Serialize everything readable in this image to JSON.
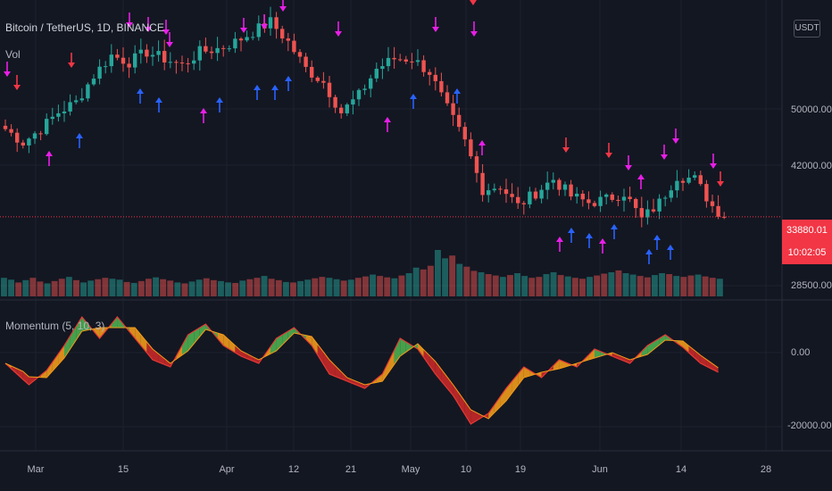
{
  "header": {
    "title": "Bitcoin / TetherUS, 1D, BINANCE",
    "vol_label": "Vol",
    "momentum_label": "Momentum (5, 10, 3)",
    "currency": "USDT"
  },
  "price_tag": {
    "price": "33880.01",
    "countdown": "10:02:05"
  },
  "price_axis": [
    "50000.00",
    "42000.00",
    "28500.00"
  ],
  "momentum_axis": [
    "0.00",
    "-20000.00"
  ],
  "x_axis": [
    "Mar",
    "15",
    "Apr",
    "12",
    "21",
    "May",
    "10",
    "19",
    "Jun",
    "14",
    "28"
  ],
  "colors": {
    "up": "#26a69a",
    "down": "#ef5350",
    "mom_green": "#4caf50",
    "mom_orange": "#f09a1b",
    "mom_red": "#c62828",
    "arrow_magenta": "#e91ee8",
    "arrow_blue": "#2962ff",
    "arrow_red": "#f23645"
  },
  "chart_data": [
    {
      "type": "candlestick",
      "title": "Bitcoin / TetherUS, 1D, BINANCE",
      "x_ticks": [
        "Mar",
        "15",
        "Apr",
        "12",
        "21",
        "May",
        "10",
        "19",
        "Jun",
        "14",
        "28"
      ],
      "y_ticks": [
        50000,
        42000,
        28500
      ],
      "last_price": 33880.01,
      "close_points": [
        [
          0,
          47000
        ],
        [
          3,
          45000
        ],
        [
          6,
          47000
        ],
        [
          9,
          49500
        ],
        [
          12,
          51000
        ],
        [
          15,
          55000
        ],
        [
          18,
          58000
        ],
        [
          21,
          57000
        ],
        [
          24,
          58500
        ],
        [
          27,
          57500
        ],
        [
          30,
          56500
        ],
        [
          33,
          58500
        ],
        [
          36,
          59000
        ],
        [
          39,
          60000
        ],
        [
          42,
          61500
        ],
        [
          45,
          63000
        ],
        [
          48,
          60000
        ],
        [
          51,
          56000
        ],
        [
          54,
          54000
        ],
        [
          57,
          49500
        ],
        [
          60,
          52000
        ],
        [
          63,
          56000
        ],
        [
          66,
          57500
        ],
        [
          69,
          57500
        ],
        [
          72,
          55500
        ],
        [
          75,
          50000
        ],
        [
          78,
          45000
        ],
        [
          81,
          38000
        ],
        [
          84,
          38500
        ],
        [
          87,
          35500
        ],
        [
          90,
          37500
        ],
        [
          93,
          39500
        ],
        [
          96,
          37000
        ],
        [
          99,
          36000
        ],
        [
          102,
          36500
        ],
        [
          105,
          37500
        ],
        [
          108,
          33500
        ],
        [
          111,
          36000
        ],
        [
          114,
          40000
        ],
        [
          117,
          39500
        ],
        [
          120,
          35500
        ],
        [
          122,
          33880
        ]
      ]
    },
    {
      "type": "bar",
      "title": "Vol",
      "series": [
        {
          "name": "Vol",
          "values": [
            40,
            36,
            30,
            35,
            40,
            32,
            28,
            33,
            38,
            42,
            35,
            30,
            34,
            37,
            40,
            38,
            36,
            31,
            29,
            33,
            38,
            41,
            37,
            34,
            30,
            28,
            32,
            36,
            39,
            35,
            33,
            30,
            29,
            34,
            37,
            40,
            44,
            38,
            35,
            31,
            30,
            33,
            36,
            39,
            42,
            40,
            37,
            34,
            36,
            40,
            43,
            47,
            44,
            41,
            39,
            45,
            50,
            62,
            58,
            66,
            100,
            82,
            88,
            70,
            64,
            55,
            52,
            48,
            45,
            42,
            46,
            50,
            44,
            40,
            42,
            48,
            52,
            46,
            43,
            40,
            38,
            42,
            45,
            49,
            52,
            56,
            50,
            47,
            44,
            41,
            46,
            50,
            48,
            44,
            42,
            45,
            47,
            43,
            40,
            38
          ]
        }
      ]
    },
    {
      "type": "area",
      "title": "Momentum (5, 10, 3)",
      "y_ticks": [
        0,
        -20000
      ],
      "series": [
        {
          "name": "Momentum (5, 10, 3)",
          "points": [
            [
              0,
              -3000
            ],
            [
              4,
              -9000
            ],
            [
              7,
              -5000
            ],
            [
              10,
              2000
            ],
            [
              13,
              10000
            ],
            [
              16,
              4000
            ],
            [
              19,
              10000
            ],
            [
              22,
              4000
            ],
            [
              25,
              -2000
            ],
            [
              28,
              -4000
            ],
            [
              31,
              5000
            ],
            [
              34,
              8000
            ],
            [
              37,
              2000
            ],
            [
              40,
              -1000
            ],
            [
              43,
              -3000
            ],
            [
              46,
              4000
            ],
            [
              49,
              7000
            ],
            [
              52,
              2000
            ],
            [
              55,
              -6000
            ],
            [
              58,
              -8000
            ],
            [
              61,
              -10000
            ],
            [
              64,
              -6000
            ],
            [
              67,
              4000
            ],
            [
              70,
              1000
            ],
            [
              73,
              -6000
            ],
            [
              76,
              -12000
            ],
            [
              79,
              -20000
            ],
            [
              82,
              -17000
            ],
            [
              85,
              -10000
            ],
            [
              88,
              -4000
            ],
            [
              91,
              -7000
            ],
            [
              94,
              -2000
            ],
            [
              97,
              -4000
            ],
            [
              100,
              1000
            ],
            [
              103,
              -1000
            ],
            [
              106,
              -3000
            ],
            [
              109,
              2000
            ],
            [
              112,
              5000
            ],
            [
              115,
              1500
            ],
            [
              118,
              -3000
            ],
            [
              121,
              -5500
            ]
          ]
        }
      ]
    }
  ]
}
